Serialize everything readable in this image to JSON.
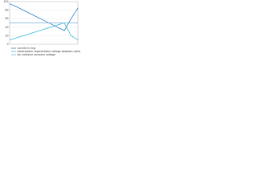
{
  "chart_data": {
    "type": "line",
    "x": [
      0,
      1,
      2,
      3,
      4,
      5,
      6,
      7,
      8,
      9,
      10
    ],
    "xlim": [
      0,
      10
    ],
    "ylim": [
      0,
      100
    ],
    "yticks": [
      0,
      20,
      40,
      60,
      80,
      100
    ],
    "grid": true,
    "series": [
      {
        "name": "current in ring",
        "color": "#2f7fc8",
        "values": [
          95,
          88,
          80,
          72,
          64,
          56,
          48,
          40,
          32,
          60,
          85
        ]
      },
      {
        "name": "electrostatic regeneration voltage between cathodes",
        "color": "#39b8d8",
        "values": [
          10,
          15,
          20,
          25,
          30,
          35,
          40,
          45,
          50,
          20,
          10
        ]
      },
      {
        "name": "ion collector recovery voltage",
        "color": "#7ab0d8",
        "values": [
          50,
          50,
          50,
          50,
          50,
          50,
          50,
          50,
          50,
          50,
          50
        ]
      }
    ]
  }
}
